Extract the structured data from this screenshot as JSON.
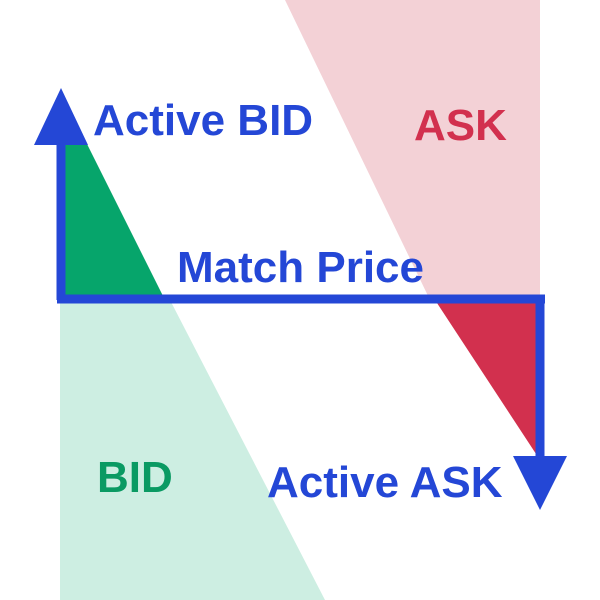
{
  "labels": {
    "active_bid": "Active BID",
    "ask": "ASK",
    "match_price": "Match Price",
    "bid": "BID",
    "active_ask": "Active ASK"
  },
  "colors": {
    "arrow": "#2447d6",
    "bid_zone": "#cdeee2",
    "bid_active": "#06a56b",
    "ask_zone": "#f3d1d6",
    "ask_active": "#d2304e",
    "bid_text": "#0a9a63",
    "ask_text": "#d2304e"
  }
}
